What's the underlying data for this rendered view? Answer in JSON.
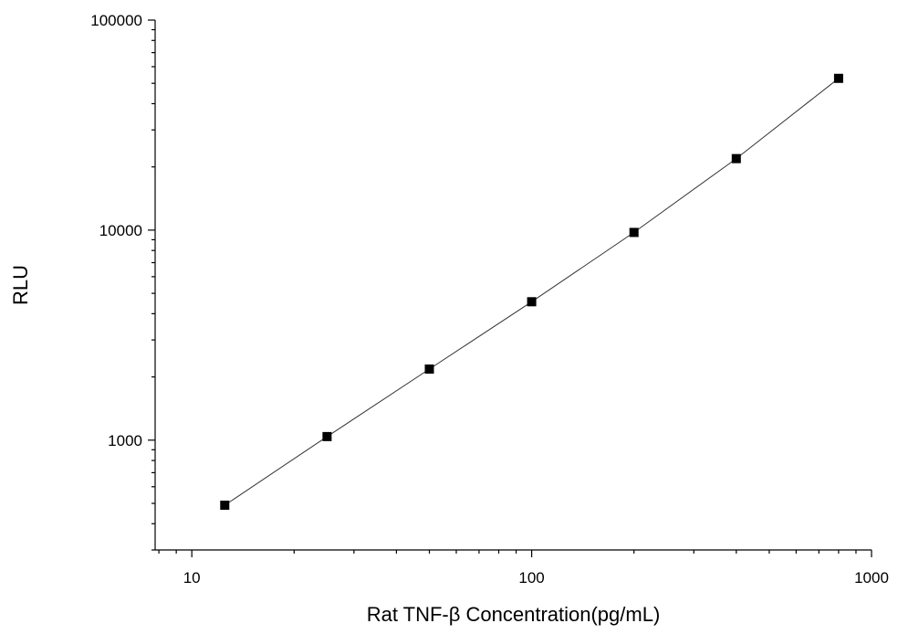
{
  "chart_data": {
    "type": "scatter",
    "title": "",
    "xlabel": "Rat TNF-β  Concentration(pg/mL)",
    "ylabel": "RLU",
    "x_scale": "log",
    "y_scale": "log",
    "xlim": [
      7.8,
      1000
    ],
    "ylim": [
      300,
      100000
    ],
    "x_ticks": [
      10,
      100,
      1000
    ],
    "x_tick_labels": [
      "10",
      "100",
      "1000"
    ],
    "y_ticks": [
      1000,
      10000,
      100000
    ],
    "y_tick_labels": [
      "1000",
      "10000",
      "100000"
    ],
    "grid": false,
    "series": [
      {
        "x": [
          12.5,
          25,
          50,
          100,
          200,
          400,
          800
        ],
        "y": [
          490,
          1040,
          2180,
          4560,
          9750,
          21900,
          52800
        ],
        "marker": "square",
        "color": "#000000",
        "fit_line": true
      }
    ]
  }
}
